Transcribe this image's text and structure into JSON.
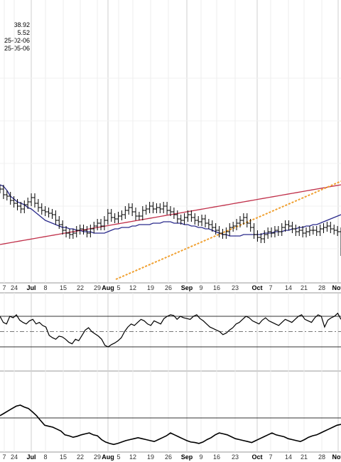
{
  "info_lines": [
    "38.92",
    "5.52",
    "25-02-06",
    "25-05-06"
  ],
  "chart_data": [
    {
      "type": "ohlc",
      "x_tick_labels": [
        "7",
        "24",
        "Jul",
        "8",
        "15",
        "22",
        "29",
        "Aug",
        "5",
        "12",
        "19",
        "26",
        "Sep",
        "9",
        "16",
        "23",
        "Oct",
        "7",
        "14",
        "21",
        "28",
        "Nov"
      ],
      "month_labels": [
        "Jul",
        "Aug",
        "Sep",
        "Oct",
        "Nov"
      ],
      "close_series": [
        62,
        58,
        57,
        54,
        52,
        50,
        48,
        51,
        53,
        56,
        52,
        49,
        47,
        46,
        45,
        44,
        40,
        37,
        33,
        31,
        30,
        31,
        33,
        34,
        33,
        31,
        34,
        36,
        38,
        36,
        40,
        45,
        42,
        41,
        43,
        44,
        47,
        49,
        46,
        43,
        43,
        47,
        48,
        50,
        48,
        49,
        48,
        50,
        47,
        46,
        44,
        41,
        40,
        42,
        44,
        42,
        40,
        39,
        41,
        38,
        37,
        35,
        33,
        31,
        30,
        32,
        35,
        36,
        38,
        40,
        42,
        38,
        35,
        30,
        28,
        27,
        30,
        32,
        31,
        33,
        32,
        35,
        37,
        36,
        34,
        32,
        33,
        31,
        32,
        33,
        33,
        32,
        34,
        35,
        36,
        34,
        33,
        32,
        18
      ],
      "moving_average_blue": [
        65,
        64,
        61,
        57,
        55,
        53,
        52,
        51,
        49,
        48,
        46,
        44,
        42,
        40,
        39,
        38,
        37,
        36,
        35,
        35,
        34,
        34,
        33,
        33,
        32,
        32,
        32,
        31,
        31,
        31,
        31,
        32,
        33,
        34,
        34,
        35,
        35,
        35,
        36,
        36,
        37,
        37,
        37,
        37,
        38,
        38,
        38,
        39,
        39,
        39,
        38,
        38,
        38,
        37,
        37,
        36,
        36,
        35,
        35,
        34,
        34,
        33,
        32,
        31,
        30,
        30,
        29,
        29,
        29,
        29,
        30,
        30,
        30,
        30,
        30,
        30,
        31,
        31,
        31,
        32,
        32,
        32,
        33,
        33,
        34,
        34,
        35,
        35,
        36,
        36,
        37,
        37,
        38,
        39,
        40,
        41,
        42,
        43,
        44
      ],
      "moving_average_red": [
        5,
        5.5,
        6,
        6.5,
        7,
        7.5,
        8,
        8.5,
        9,
        9.5,
        10,
        10.5,
        11,
        11.5,
        12,
        12.5,
        13,
        13.5,
        14,
        14.5,
        15,
        15.5,
        16,
        16.5,
        17,
        17.5,
        18,
        18.5,
        19,
        19.5,
        20,
        20.5,
        21,
        21.5,
        22,
        22.5,
        23,
        23.5,
        24,
        24.5,
        25,
        25.5,
        26,
        26.5,
        27,
        27.5,
        28,
        28.5,
        29,
        29.5,
        30,
        30.5,
        31,
        31.5,
        32,
        32.5,
        33,
        33.5,
        34,
        34.5,
        35,
        35.5,
        36,
        36.5,
        37,
        37.5,
        38,
        38.5,
        39,
        39.5,
        40
      ],
      "trend_line": {
        "from": "Aug 5",
        "to": "Nov"
      }
    },
    {
      "type": "line",
      "name": "oscillator",
      "values": [
        70,
        62,
        60,
        70,
        68,
        72,
        65,
        62,
        60,
        64,
        66,
        60,
        62,
        58,
        56,
        45,
        42,
        40,
        44,
        43,
        40,
        36,
        34,
        40,
        38,
        45,
        52,
        55,
        50,
        47,
        44,
        40,
        32,
        30,
        33,
        35,
        38,
        42,
        50,
        56,
        60,
        58,
        62,
        66,
        64,
        60,
        58,
        64,
        62,
        60,
        67,
        70,
        72,
        71,
        66,
        70,
        68,
        67,
        66,
        70,
        72,
        67,
        64,
        60,
        56,
        54,
        52,
        50,
        46,
        48,
        52,
        55,
        60,
        62,
        66,
        70,
        68,
        64,
        62,
        60,
        65,
        68,
        64,
        62,
        60,
        58,
        62,
        66,
        64,
        62,
        66,
        70,
        72,
        66,
        64,
        62,
        68,
        72,
        70,
        56,
        65,
        68,
        70,
        74,
        66
      ],
      "upper_band": 70,
      "middle_band": 50,
      "lower_band": 30
    },
    {
      "type": "line",
      "name": "indicator",
      "values": [
        70,
        75,
        80,
        85,
        90,
        92,
        88,
        85,
        78,
        70,
        60,
        50,
        48,
        46,
        42,
        38,
        30,
        28,
        25,
        27,
        30,
        32,
        34,
        30,
        28,
        20,
        15,
        12,
        10,
        12,
        15,
        18,
        20,
        22,
        24,
        22,
        20,
        18,
        16,
        20,
        24,
        28,
        34,
        30,
        26,
        22,
        18,
        15,
        14,
        12,
        15,
        20,
        24,
        30,
        34,
        32,
        30,
        26,
        22,
        20,
        18,
        16,
        14,
        18,
        22,
        26,
        30,
        34,
        30,
        28,
        26,
        22,
        20,
        18,
        16,
        20,
        25,
        28,
        30,
        34,
        38,
        42,
        46,
        50,
        52
      ],
      "reference_line": 50
    }
  ]
}
